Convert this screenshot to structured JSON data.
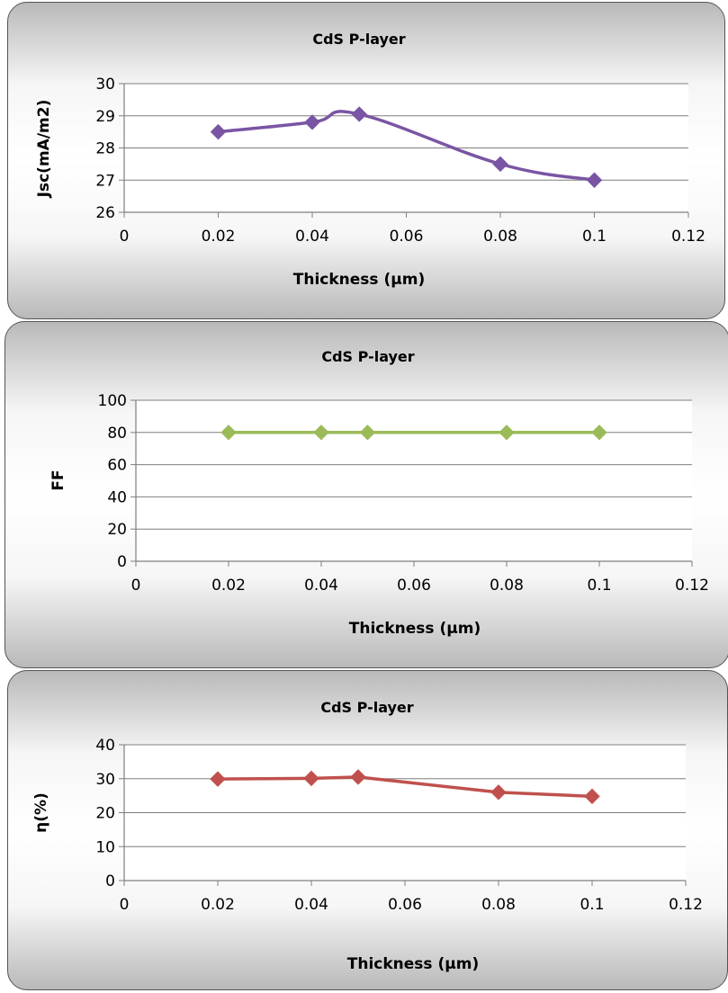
{
  "chart_data": [
    {
      "type": "line",
      "title": "CdS P-layer",
      "xlabel": "Thickness (µm)",
      "ylabel": "Jsc(mA/m2)",
      "x": [
        0.02,
        0.04,
        0.05,
        0.08,
        0.1
      ],
      "series": [
        {
          "values": [
            28.5,
            28.8,
            29.05,
            27.5,
            27.0
          ],
          "color": "#7a55a3"
        }
      ],
      "xlim": [
        0,
        0.12
      ],
      "ylim": [
        26,
        30
      ],
      "xticks": [
        "0",
        "0.02",
        "0.04",
        "0.06",
        "0.08",
        "0.1",
        "0.12"
      ],
      "yticks": [
        "26",
        "27",
        "28",
        "29",
        "30"
      ],
      "grid": true,
      "smooth": true,
      "marker": "diamond"
    },
    {
      "type": "line",
      "title": "CdS P-layer",
      "xlabel": "Thickness (µm)",
      "ylabel": "FF",
      "x": [
        0.02,
        0.04,
        0.05,
        0.08,
        0.1
      ],
      "series": [
        {
          "values": [
            80,
            80,
            80,
            80,
            80
          ],
          "color": "#9bbb59"
        }
      ],
      "xlim": [
        0,
        0.12
      ],
      "ylim": [
        0,
        100
      ],
      "xticks": [
        "0",
        "0.02",
        "0.04",
        "0.06",
        "0.08",
        "0.1",
        "0.12"
      ],
      "yticks": [
        "0",
        "20",
        "40",
        "60",
        "80",
        "100"
      ],
      "grid": true,
      "smooth": false,
      "marker": "diamond"
    },
    {
      "type": "line",
      "title": "CdS P-layer",
      "xlabel": "Thickness (µm)",
      "ylabel": "η(%)",
      "x": [
        0.02,
        0.04,
        0.05,
        0.08,
        0.1
      ],
      "series": [
        {
          "values": [
            29.9,
            30.1,
            30.5,
            26.0,
            24.8
          ],
          "color": "#c0504d"
        }
      ],
      "xlim": [
        0,
        0.12
      ],
      "ylim": [
        0,
        40
      ],
      "xticks": [
        "0",
        "0.02",
        "0.04",
        "0.06",
        "0.08",
        "0.1",
        "0.12"
      ],
      "yticks": [
        "0",
        "10",
        "20",
        "30",
        "40"
      ],
      "grid": true,
      "smooth": false,
      "marker": "diamond"
    }
  ]
}
